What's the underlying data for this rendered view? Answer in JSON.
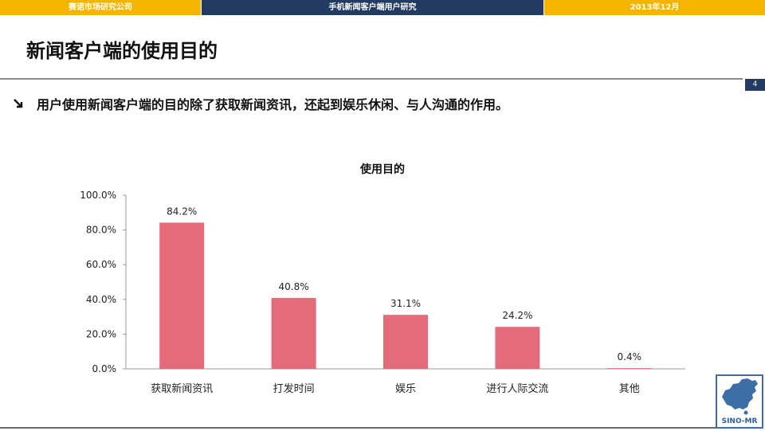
{
  "header": {
    "company": "赛诺市场研究公司",
    "report": "手机新闻客户端用户研究",
    "date": "2013年12月"
  },
  "page": {
    "title": "新闻客户端的使用目的",
    "number": "4",
    "bullet": "用户使用新闻客户端的目的除了获取新闻资讯，还起到娱乐休闲、与人沟通的作用。"
  },
  "logo": {
    "text": "SINO-MR",
    "icon": "china-map-icon"
  },
  "colors": {
    "header_gold": "#f5b400",
    "header_navy": "#233a63",
    "bar": "#e46c7a"
  },
  "chart_data": {
    "type": "bar",
    "title": "使用目的",
    "categories": [
      "获取新闻资讯",
      "打发时间",
      "娱乐",
      "进行人际交流",
      "其他"
    ],
    "values": [
      84.2,
      40.8,
      31.1,
      24.2,
      0.4
    ],
    "value_labels": [
      "84.2%",
      "40.8%",
      "31.1%",
      "24.2%",
      "0.4%"
    ],
    "yticks": [
      "0.0%",
      "20.0%",
      "40.0%",
      "60.0%",
      "80.0%",
      "100.0%"
    ],
    "ylim": [
      0,
      100
    ],
    "grid": false,
    "legend": "none"
  }
}
